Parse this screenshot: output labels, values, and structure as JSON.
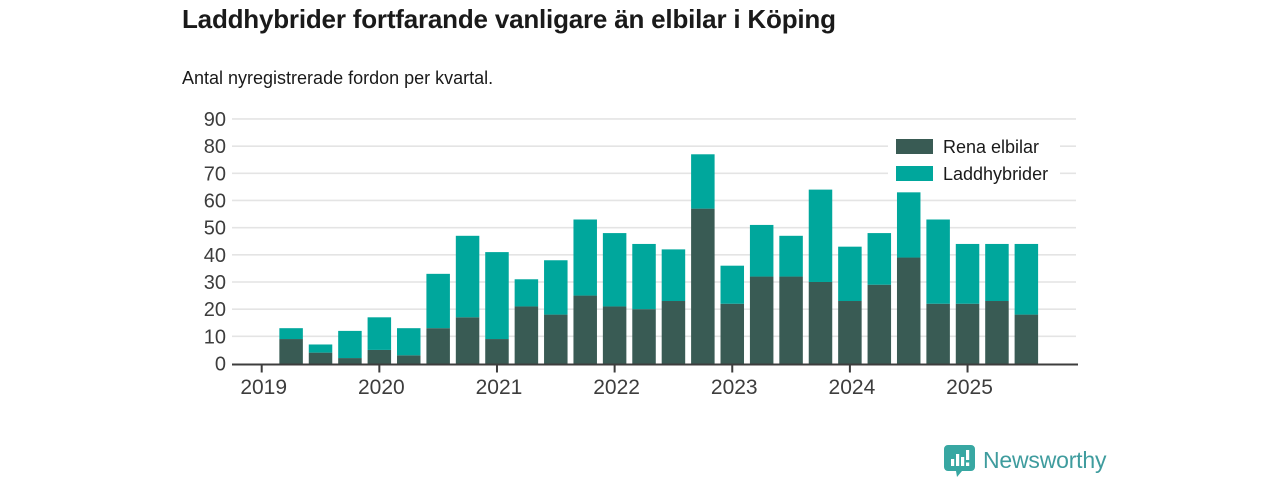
{
  "header": {
    "title": "Laddhybrider fortfarande vanligare än elbilar i Köping",
    "subtitle": "Antal nyregistrerade fordon per kvartal."
  },
  "footer": {
    "brand": "Newsworthy"
  },
  "colors": {
    "series_elbilar": "#395b54",
    "series_laddhybrider": "#00a79c",
    "brand_text": "#3f9c9e",
    "brand_icon": "#38a7a2",
    "axis": "#3d3d3d",
    "grid": "#e4e4e4",
    "text": "#1a1a1a"
  },
  "chart_data": {
    "type": "bar",
    "stacked": true,
    "title": "Laddhybrider fortfarande vanligare än elbilar i Köping",
    "subtitle": "Antal nyregistrerade fordon per kvartal.",
    "categories": [
      "2019-Q2",
      "2019-Q3",
      "2019-Q4",
      "2020-Q1",
      "2020-Q2",
      "2020-Q3",
      "2020-Q4",
      "2021-Q1",
      "2021-Q2",
      "2021-Q3",
      "2021-Q4",
      "2022-Q1",
      "2022-Q2",
      "2022-Q3",
      "2022-Q4",
      "2023-Q1",
      "2023-Q2",
      "2023-Q3",
      "2023-Q4",
      "2024-Q1",
      "2024-Q2",
      "2024-Q3",
      "2024-Q4",
      "2025-Q1",
      "2025-Q2",
      "2025-Q3"
    ],
    "series": [
      {
        "name": "Rena elbilar",
        "color": "#395b54",
        "values": [
          9,
          4,
          2,
          5,
          3,
          13,
          17,
          9,
          21,
          18,
          25,
          21,
          20,
          23,
          57,
          22,
          32,
          32,
          30,
          23,
          29,
          39,
          22,
          22,
          23,
          18
        ]
      },
      {
        "name": "Laddhybrider",
        "color": "#00a79c",
        "values": [
          4,
          3,
          10,
          12,
          10,
          20,
          30,
          32,
          10,
          20,
          28,
          27,
          24,
          19,
          20,
          14,
          19,
          15,
          34,
          20,
          19,
          24,
          31,
          22,
          21,
          26
        ]
      }
    ],
    "totals": [
      13,
      7,
      12,
      17,
      13,
      33,
      47,
      41,
      31,
      38,
      53,
      48,
      44,
      42,
      77,
      36,
      51,
      47,
      64,
      43,
      48,
      63,
      53,
      44,
      44,
      44
    ],
    "ylim": [
      0,
      90
    ],
    "yticks": [
      0,
      10,
      20,
      30,
      40,
      50,
      60,
      70,
      80,
      90
    ],
    "x_year_ticks": [
      "2019",
      "2020",
      "2021",
      "2022",
      "2023",
      "2024",
      "2025"
    ],
    "quarters_per_year": 4,
    "first_bar_quarter_offset": 1,
    "grid": true,
    "legend_position": "top-right"
  }
}
